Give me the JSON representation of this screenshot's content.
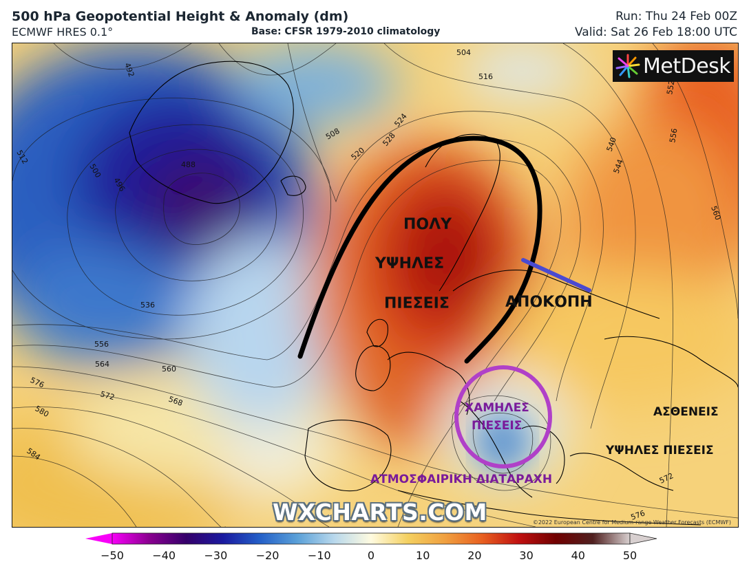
{
  "header": {
    "title": "500 hPa Geopotential Height & Anomaly (dm)",
    "model": "ECMWF HRES 0.1°",
    "base": "Base: CFSR 1979-2010 climatology",
    "run": "Run: Thu 24 Feb 00Z",
    "valid": "Valid: Sat 26 Feb 18:00 UTC"
  },
  "logo": {
    "text": "MetDesk"
  },
  "contour_labels": [
    "492",
    "488",
    "496",
    "500",
    "504",
    "508",
    "512",
    "516",
    "520",
    "524",
    "528",
    "536",
    "540",
    "544",
    "552",
    "556",
    "560",
    "564",
    "568",
    "572",
    "576",
    "580",
    "584"
  ],
  "annotations": {
    "high_line1": "ΠΟΛΥ",
    "high_line2": "ΥΨΗΛΕΣ",
    "high_line3": "ΠΙΕΣΕΙΣ",
    "cutoff": "ΑΠΟΚΟΠΗ",
    "low_line1": "ΧΑΜΗΛΕΣ",
    "low_line2": "ΠΙΕΣΕΙΣ",
    "disturbance": "ΑΤΜΟΣΦΑΙΡΙΚΗ ΔΙΑΤΑΡΑΧΗ",
    "weak_line1": "ΑΣΘΕΝΕΙΣ",
    "weak_line2": "ΥΨΗΛΕΣ ΠΙΕΣΕΙΣ"
  },
  "watermark": "WXCHARTS.COM",
  "copyright": "©2022 European Centre for Medium-range Weather Forecasts (ECMWF)",
  "colorbar": {
    "ticks": [
      "−50",
      "−40",
      "−30",
      "−20",
      "−10",
      "0",
      "10",
      "20",
      "30",
      "40",
      "50"
    ],
    "min": -50,
    "max": 50,
    "colors": [
      "#f800f8",
      "#8a0090",
      "#35006a",
      "#1a1aa0",
      "#2460c8",
      "#5aa0d8",
      "#b8d8ec",
      "#fffbe0",
      "#f4d060",
      "#f0a040",
      "#e86020",
      "#c01010",
      "#700000",
      "#502020",
      "#d8d0d0"
    ]
  },
  "colors": {
    "annotation_black": "#111111",
    "annotation_purple": "#7a1a9a",
    "circle_purple": "#b040c8",
    "cutoff_line": "#4a4ad0"
  }
}
